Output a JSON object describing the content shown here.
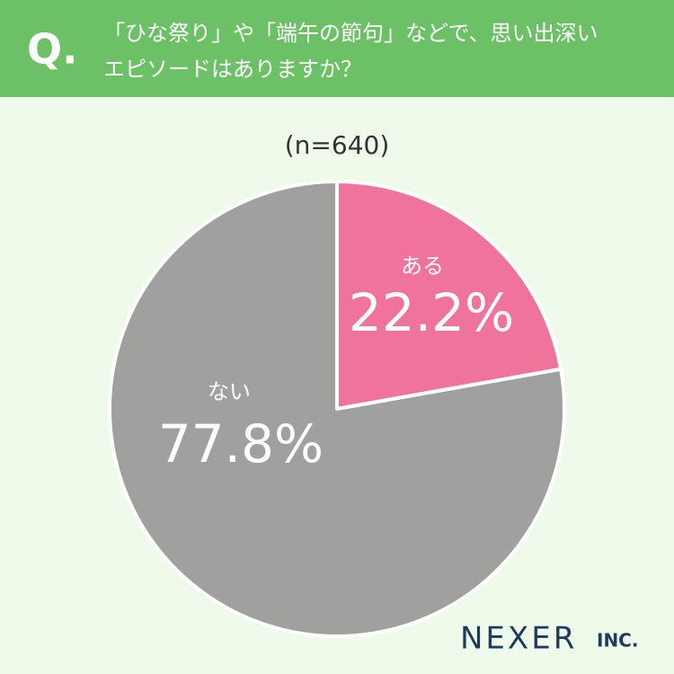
{
  "chart_data": {
    "type": "pie",
    "question_mark": "Q.",
    "title": [
      "「ひな祭り」や「端午の節句」などで、思い出深い",
      "エピソードはありますか？"
    ],
    "subtitle": "(n=640)",
    "categories": [
      "ある",
      "ない"
    ],
    "values": [
      22.2,
      77.8
    ],
    "value_labels": [
      "22.2%",
      "77.8%"
    ],
    "colors": [
      "#f0739c",
      "#a0a19f"
    ],
    "logo": "NEXER",
    "logo_suffix": "INC."
  }
}
